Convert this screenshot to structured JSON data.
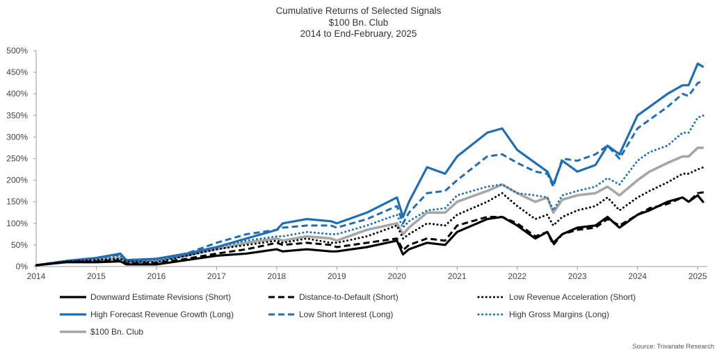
{
  "source": "Source: Trivariate Research",
  "chart_data": {
    "type": "line",
    "title": [
      "Cumulative Returns of Selected Signals",
      "$100 Bn. Club",
      "2014 to End-February, 2025"
    ],
    "xlabel": "",
    "ylabel": "",
    "xlim": [
      2014,
      2025.16
    ],
    "ylim": [
      0,
      500
    ],
    "x_ticks": [
      "2014",
      "2015",
      "2016",
      "2017",
      "2018",
      "2019",
      "2020",
      "2021",
      "2022",
      "2023",
      "2024",
      "2025"
    ],
    "y_ticks": [
      "0%",
      "50%",
      "100%",
      "150%",
      "200%",
      "250%",
      "300%",
      "350%",
      "400%",
      "450%",
      "500%"
    ],
    "grid": false,
    "legend_position": "bottom",
    "x": [
      2014.0,
      2014.5,
      2015.0,
      2015.4,
      2015.5,
      2016.0,
      2016.5,
      2017.0,
      2017.5,
      2018.0,
      2018.1,
      2018.5,
      2018.9,
      2019.0,
      2019.5,
      2020.0,
      2020.1,
      2020.2,
      2020.5,
      2020.8,
      2021.0,
      2021.5,
      2021.75,
      2022.0,
      2022.3,
      2022.5,
      2022.6,
      2022.75,
      2023.0,
      2023.3,
      2023.5,
      2023.7,
      2024.0,
      2024.2,
      2024.5,
      2024.75,
      2024.85,
      2025.0,
      2025.1
    ],
    "series": [
      {
        "name": "Downward Estimate Revisions (Short)",
        "color": "#000000",
        "dash": "solid",
        "width": 3.2,
        "values": [
          3,
          10,
          10,
          12,
          5,
          5,
          15,
          25,
          30,
          40,
          35,
          40,
          35,
          35,
          45,
          60,
          28,
          40,
          55,
          50,
          80,
          110,
          115,
          95,
          65,
          80,
          55,
          75,
          90,
          95,
          115,
          90,
          120,
          130,
          150,
          160,
          150,
          165,
          148
        ]
      },
      {
        "name": "Distance-to-Default (Short)",
        "color": "#000000",
        "dash": "dash",
        "width": 3.0,
        "values": [
          3,
          11,
          12,
          14,
          7,
          8,
          18,
          30,
          40,
          55,
          50,
          55,
          50,
          45,
          55,
          65,
          38,
          50,
          65,
          60,
          95,
          115,
          115,
          100,
          70,
          80,
          50,
          75,
          85,
          90,
          110,
          95,
          120,
          135,
          145,
          160,
          150,
          170,
          172
        ]
      },
      {
        "name": "Low Revenue Acceleration (Short)",
        "color": "#000000",
        "dash": "dot",
        "width": 3.0,
        "values": [
          3,
          12,
          15,
          18,
          12,
          10,
          25,
          40,
          50,
          60,
          55,
          65,
          55,
          55,
          70,
          95,
          65,
          75,
          100,
          95,
          120,
          150,
          170,
          140,
          110,
          120,
          95,
          115,
          130,
          140,
          160,
          130,
          160,
          175,
          195,
          215,
          215,
          225,
          230
        ]
      },
      {
        "name": "High Forecast Revenue Growth (Long)",
        "color": "#1f6eb5",
        "dash": "solid",
        "width": 3.2,
        "values": [
          3,
          13,
          20,
          30,
          15,
          18,
          30,
          45,
          65,
          85,
          100,
          110,
          105,
          100,
          125,
          160,
          115,
          150,
          230,
          215,
          255,
          310,
          320,
          270,
          240,
          220,
          190,
          245,
          220,
          235,
          280,
          260,
          350,
          370,
          400,
          420,
          420,
          470,
          462
        ]
      },
      {
        "name": "Low Short Interest (Long)",
        "color": "#1f6eb5",
        "dash": "dash",
        "width": 3.0,
        "values": [
          3,
          13,
          20,
          28,
          15,
          18,
          30,
          55,
          75,
          85,
          90,
          95,
          95,
          90,
          110,
          140,
          100,
          125,
          170,
          175,
          200,
          255,
          260,
          240,
          220,
          215,
          185,
          250,
          245,
          260,
          280,
          250,
          320,
          340,
          370,
          400,
          395,
          425,
          430
        ]
      },
      {
        "name": "High Gross Margins (Long)",
        "color": "#1f6eb5",
        "dash": "dot",
        "width": 3.0,
        "values": [
          3,
          13,
          18,
          25,
          12,
          15,
          25,
          45,
          60,
          70,
          70,
          80,
          75,
          75,
          95,
          120,
          90,
          105,
          130,
          135,
          165,
          185,
          190,
          170,
          165,
          160,
          130,
          165,
          175,
          185,
          205,
          190,
          245,
          265,
          280,
          310,
          310,
          345,
          350
        ]
      },
      {
        "name": "$100 Bn. Club",
        "color": "#a6a6a6",
        "dash": "solid",
        "width": 3.6,
        "values": [
          3,
          12,
          15,
          20,
          10,
          13,
          25,
          40,
          55,
          65,
          60,
          70,
          65,
          60,
          85,
          100,
          75,
          90,
          125,
          125,
          150,
          175,
          190,
          170,
          150,
          160,
          125,
          155,
          165,
          170,
          185,
          165,
          200,
          220,
          240,
          255,
          255,
          275,
          275
        ]
      }
    ]
  }
}
